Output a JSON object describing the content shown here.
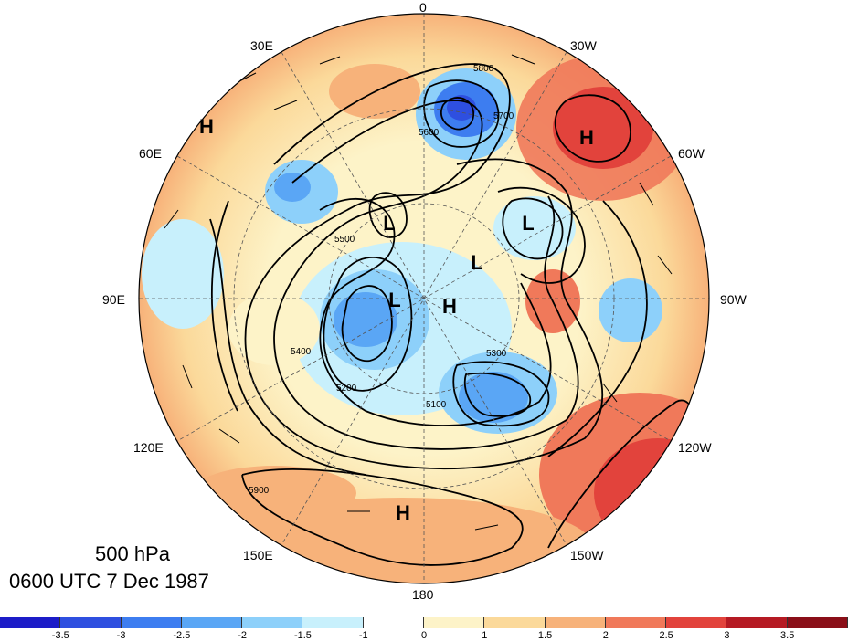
{
  "title": {
    "level": "500 hPa",
    "time": "0600 UTC 7 Dec 1987"
  },
  "longitude_labels": {
    "lon_0": "0",
    "lon_30w": "30W",
    "lon_60w": "60W",
    "lon_90w": "90W",
    "lon_120w": "120W",
    "lon_150w": "150W",
    "lon_180": "180",
    "lon_150e": "150E",
    "lon_120e": "120E",
    "lon_90e": "90E",
    "lon_60e": "60E",
    "lon_30e": "30E"
  },
  "pressure_centers": [
    {
      "symbol": "H",
      "region": "north-atlantic"
    },
    {
      "symbol": "H",
      "region": "west-europe"
    },
    {
      "symbol": "L",
      "region": "scandinavia"
    },
    {
      "symbol": "L",
      "region": "greenland"
    },
    {
      "symbol": "L",
      "region": "arctic"
    },
    {
      "symbol": "L",
      "region": "siberia"
    },
    {
      "symbol": "H",
      "region": "pole"
    },
    {
      "symbol": "H",
      "region": "north-pacific"
    }
  ],
  "contour_labels": [
    "5800",
    "5700",
    "5600",
    "5500",
    "5400",
    "5300",
    "5200",
    "5100",
    "5900"
  ],
  "colorbar": {
    "colors": [
      "#1c1cc8",
      "#2e4fe0",
      "#3d7df0",
      "#5aa6f5",
      "#8dd0fa",
      "#c8f0fc",
      "#ffffff",
      "#fdf3c8",
      "#fbd99a",
      "#f7b27a",
      "#f0795a",
      "#e2433c",
      "#b51a23",
      "#8a0f18"
    ],
    "ticks": [
      "-3.5",
      "-3",
      "-2.5",
      "-2",
      "-1.5",
      "-1",
      "0",
      "1",
      "1.5",
      "2",
      "2.5",
      "3",
      "3.5"
    ]
  }
}
